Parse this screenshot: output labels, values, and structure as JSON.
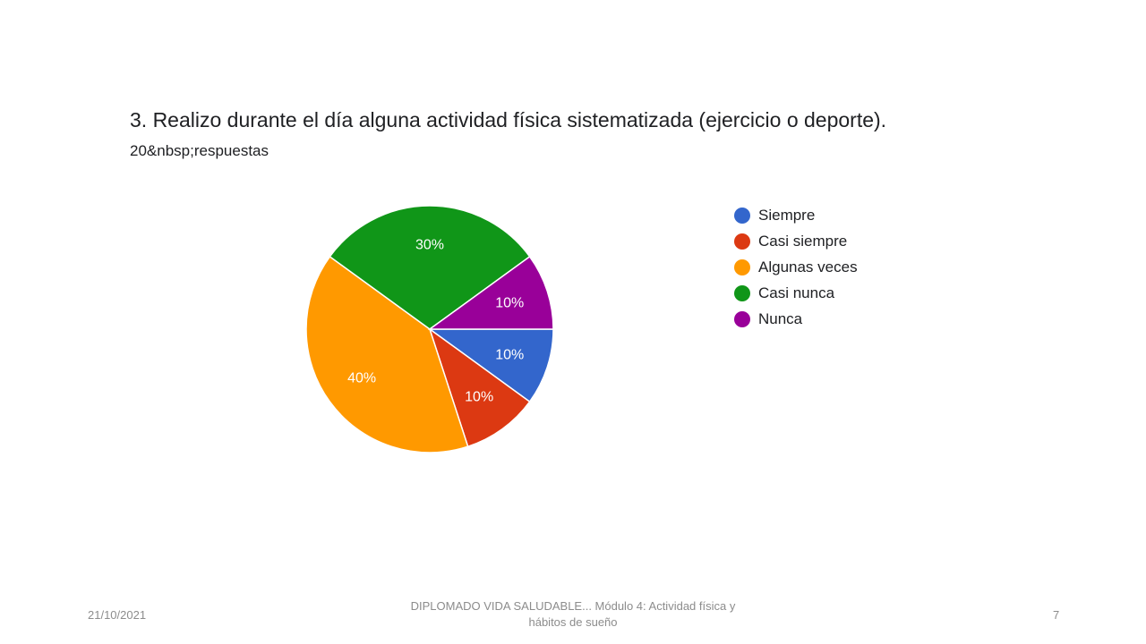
{
  "slide": {
    "footer_date": "21/10/2021",
    "footer_center_line1": "DIPLOMADO VIDA SALUDABLE... Módulo 4: Actividad física y",
    "footer_center_line2": "hábitos de sueño",
    "page_number": "7"
  },
  "chart_data": {
    "type": "pie",
    "title": "3. Realizo durante el día alguna actividad física sistematizada (ejercicio o deporte).",
    "subtitle": "20&nbsp;respuestas",
    "legend_position": "right",
    "start_direction": "right-horizontal",
    "slices": [
      {
        "label": "Siempre",
        "value": 10,
        "display": "10%",
        "color": "#3366cc"
      },
      {
        "label": "Casi siempre",
        "value": 10,
        "display": "10%",
        "color": "#dc3912"
      },
      {
        "label": "Algunas veces",
        "value": 40,
        "display": "40%",
        "color": "#ff9900"
      },
      {
        "label": "Casi nunca",
        "value": 30,
        "display": "30%",
        "color": "#109618"
      },
      {
        "label": "Nunca",
        "value": 10,
        "display": "10%",
        "color": "#990099"
      }
    ]
  }
}
